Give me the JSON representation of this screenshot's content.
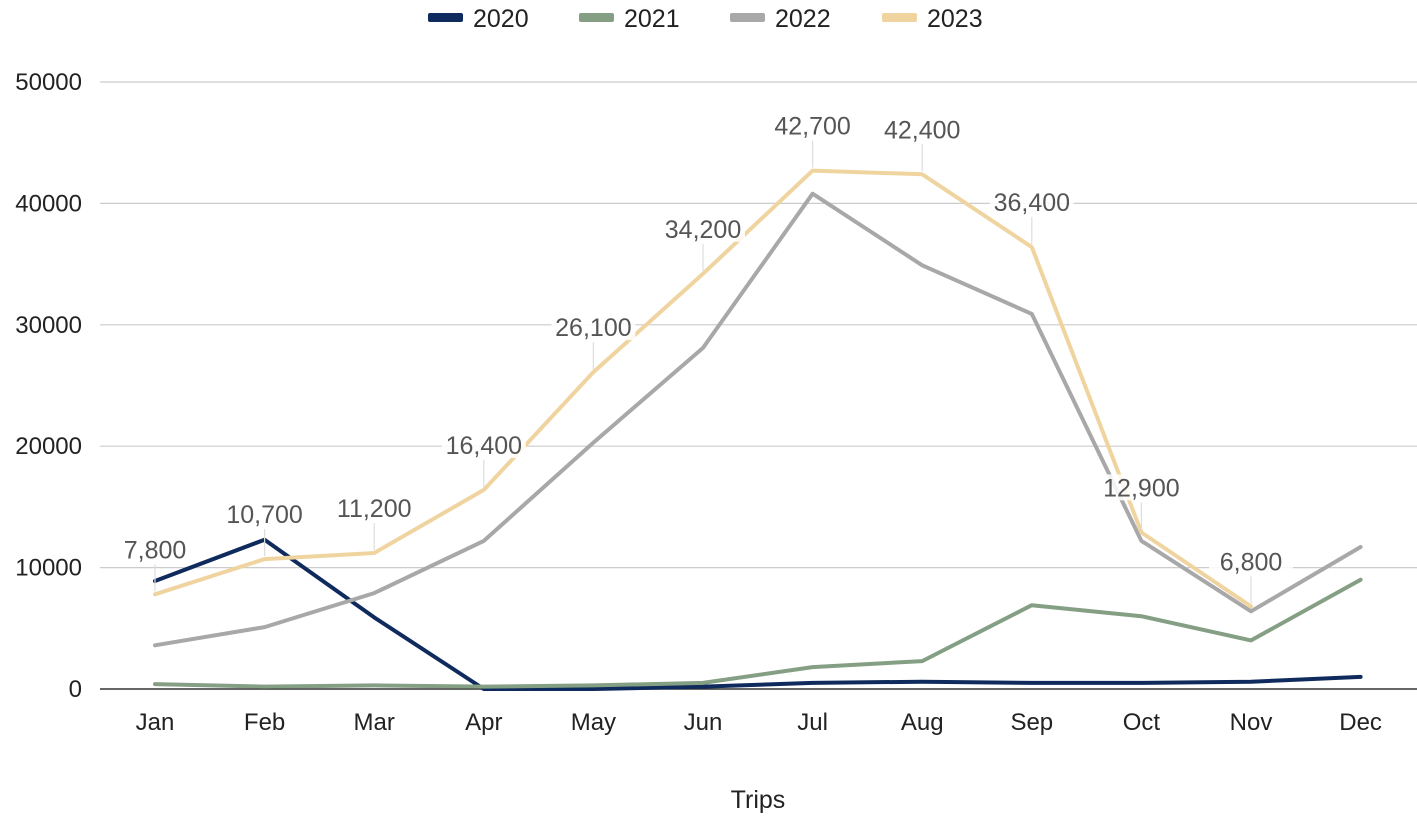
{
  "chart_data": {
    "type": "line",
    "title": "",
    "xlabel": "Trips",
    "ylabel": "",
    "categories": [
      "Jan",
      "Feb",
      "Mar",
      "Apr",
      "May",
      "Jun",
      "Jul",
      "Aug",
      "Sep",
      "Oct",
      "Nov",
      "Dec"
    ],
    "ylim": [
      0,
      50000
    ],
    "yticks": [
      "0",
      "10000",
      "20000",
      "30000",
      "40000",
      "50000"
    ],
    "grid": true,
    "legend_position": "top",
    "series": [
      {
        "name": "2020",
        "color": "#0f2a5c",
        "values": [
          8900,
          12300,
          5900,
          0,
          0,
          200,
          500,
          600,
          500,
          500,
          600,
          1000
        ]
      },
      {
        "name": "2021",
        "color": "#849f83",
        "values": [
          400,
          200,
          300,
          200,
          300,
          500,
          1800,
          2300,
          6900,
          6000,
          4000,
          9000
        ]
      },
      {
        "name": "2022",
        "color": "#a8a8a8",
        "values": [
          3600,
          5100,
          7900,
          12200,
          20300,
          28100,
          40800,
          34900,
          30900,
          12200,
          6400,
          11700
        ]
      },
      {
        "name": "2023",
        "color": "#f0d4a0",
        "values": [
          7800,
          10700,
          11200,
          16400,
          26100,
          34200,
          42700,
          42400,
          36400,
          12900,
          6800,
          null
        ],
        "data_labels": [
          "7,800",
          "10,700",
          "11,200",
          "16,400",
          "26,100",
          "34,200",
          "42,700",
          "42,400",
          "36,400",
          "12,900",
          "6,800",
          ""
        ]
      }
    ]
  }
}
